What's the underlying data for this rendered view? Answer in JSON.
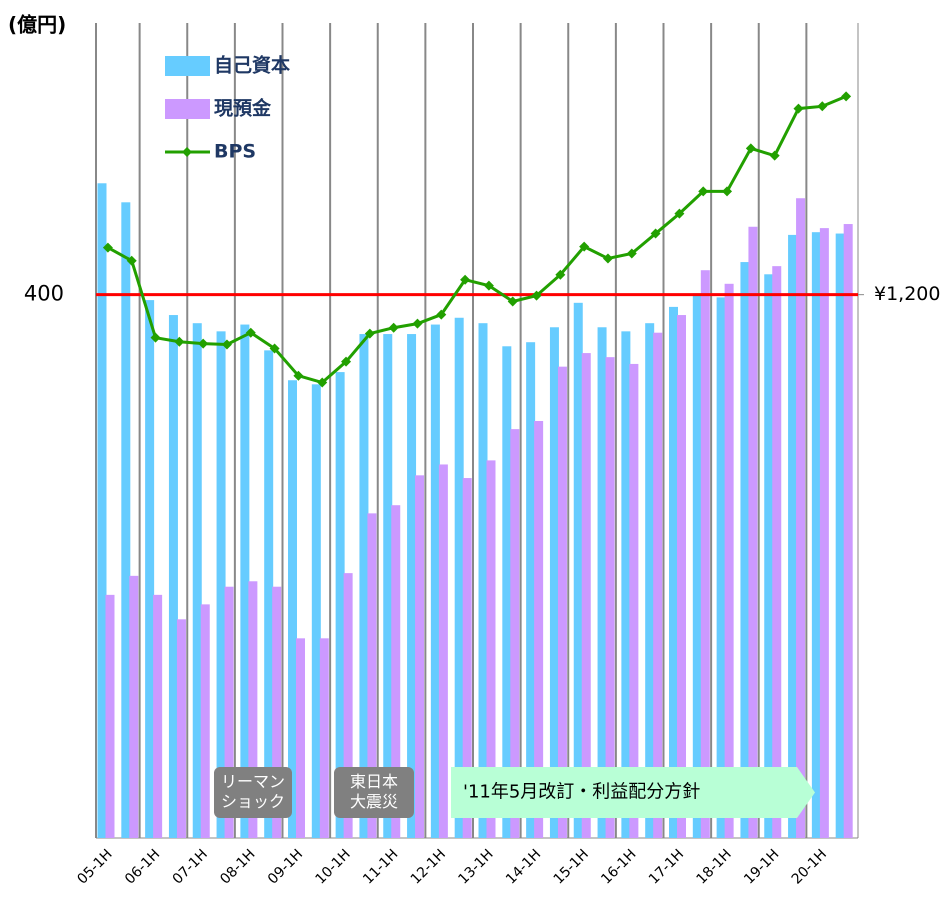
{
  "chart_data": {
    "type": "bar_line",
    "y_axis_label": "(億円)",
    "categories": [
      "05-1H",
      null,
      "06-1H",
      null,
      "07-1H",
      null,
      "08-1H",
      null,
      "09-1H",
      null,
      "10-1H",
      null,
      "11-1H",
      null,
      "12-1H",
      null,
      "13-1H",
      null,
      "14-1H",
      null,
      "15-1H",
      null,
      "16-1H",
      null,
      "17-1H",
      null,
      "18-1H",
      null,
      "19-1H",
      null,
      "20-1H",
      null
    ],
    "series": [
      {
        "name": "自己資本",
        "color": "#66ccff",
        "values": [
          482,
          468,
          396,
          385,
          379,
          373,
          378,
          359,
          337,
          334,
          343,
          371,
          371,
          371,
          378,
          383,
          379,
          362,
          365,
          376,
          394,
          376,
          373,
          379,
          391,
          401,
          398,
          424,
          415,
          444,
          446,
          445
        ]
      },
      {
        "name": "現預金",
        "color": "#cc99ff",
        "values": [
          179,
          193,
          179,
          161,
          172,
          185,
          189,
          185,
          147,
          147,
          195,
          239,
          245,
          267,
          275,
          265,
          278,
          301,
          307,
          347,
          357,
          354,
          349,
          372,
          385,
          418,
          408,
          450,
          421,
          471,
          449,
          452
        ]
      },
      {
        "name": "BPS",
        "color": "#22a000",
        "axis": "y2",
        "type": "line",
        "values": [
          1304,
          1275,
          1105,
          1096,
          1092,
          1090,
          1116,
          1081,
          1021,
          1006,
          1052,
          1114,
          1127,
          1136,
          1156,
          1233,
          1220,
          1185,
          1198,
          1244,
          1306,
          1280,
          1291,
          1335,
          1379,
          1428,
          1428,
          1523,
          1507,
          1611,
          1616,
          1638
        ]
      }
    ],
    "ylim": [
      0,
      600
    ],
    "yticks": [
      400
    ],
    "ytick_line_color": "#ff0000",
    "y2lim": [
      0,
      1800
    ],
    "y2ticks": [
      {
        "value": 1200,
        "label": "¥1,200"
      }
    ],
    "xgrid": true,
    "legend": "upper left",
    "annotations": [
      {
        "text": [
          "リーマン",
          "ショック"
        ]
      },
      {
        "text": [
          "東日本",
          "大震災"
        ]
      },
      {
        "text": [
          "'11年5月改訂・利益配分方針"
        ]
      }
    ]
  }
}
